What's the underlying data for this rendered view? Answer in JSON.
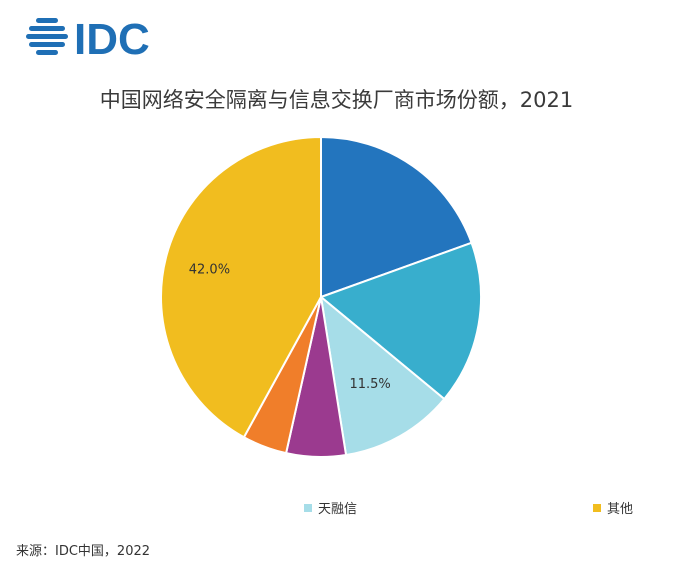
{
  "brand": {
    "logo_text": "IDC",
    "color": "#1f6fb5"
  },
  "chart_data": {
    "type": "pie",
    "title": "中国网络安全隔离与信息交换厂商市场份额，2021",
    "slices": [
      {
        "name": "",
        "value": 19.5,
        "label": "",
        "color": "#2375be"
      },
      {
        "name": "",
        "value": 16.5,
        "label": "",
        "color": "#38aecd"
      },
      {
        "name": "天融信",
        "value": 11.5,
        "label": "11.5%",
        "color": "#a6dde8"
      },
      {
        "name": "",
        "value": 6.0,
        "label": "",
        "color": "#9b3a8f"
      },
      {
        "name": "",
        "value": 4.5,
        "label": "",
        "color": "#f07e2a"
      },
      {
        "name": "其他",
        "value": 42.0,
        "label": "42.0%",
        "color": "#f1bd1f"
      }
    ],
    "legend": [
      {
        "label": "天融信",
        "color": "#a6dde8"
      },
      {
        "label": "其他",
        "color": "#f1bd1f"
      }
    ],
    "source": "来源：IDC中国，2022"
  }
}
